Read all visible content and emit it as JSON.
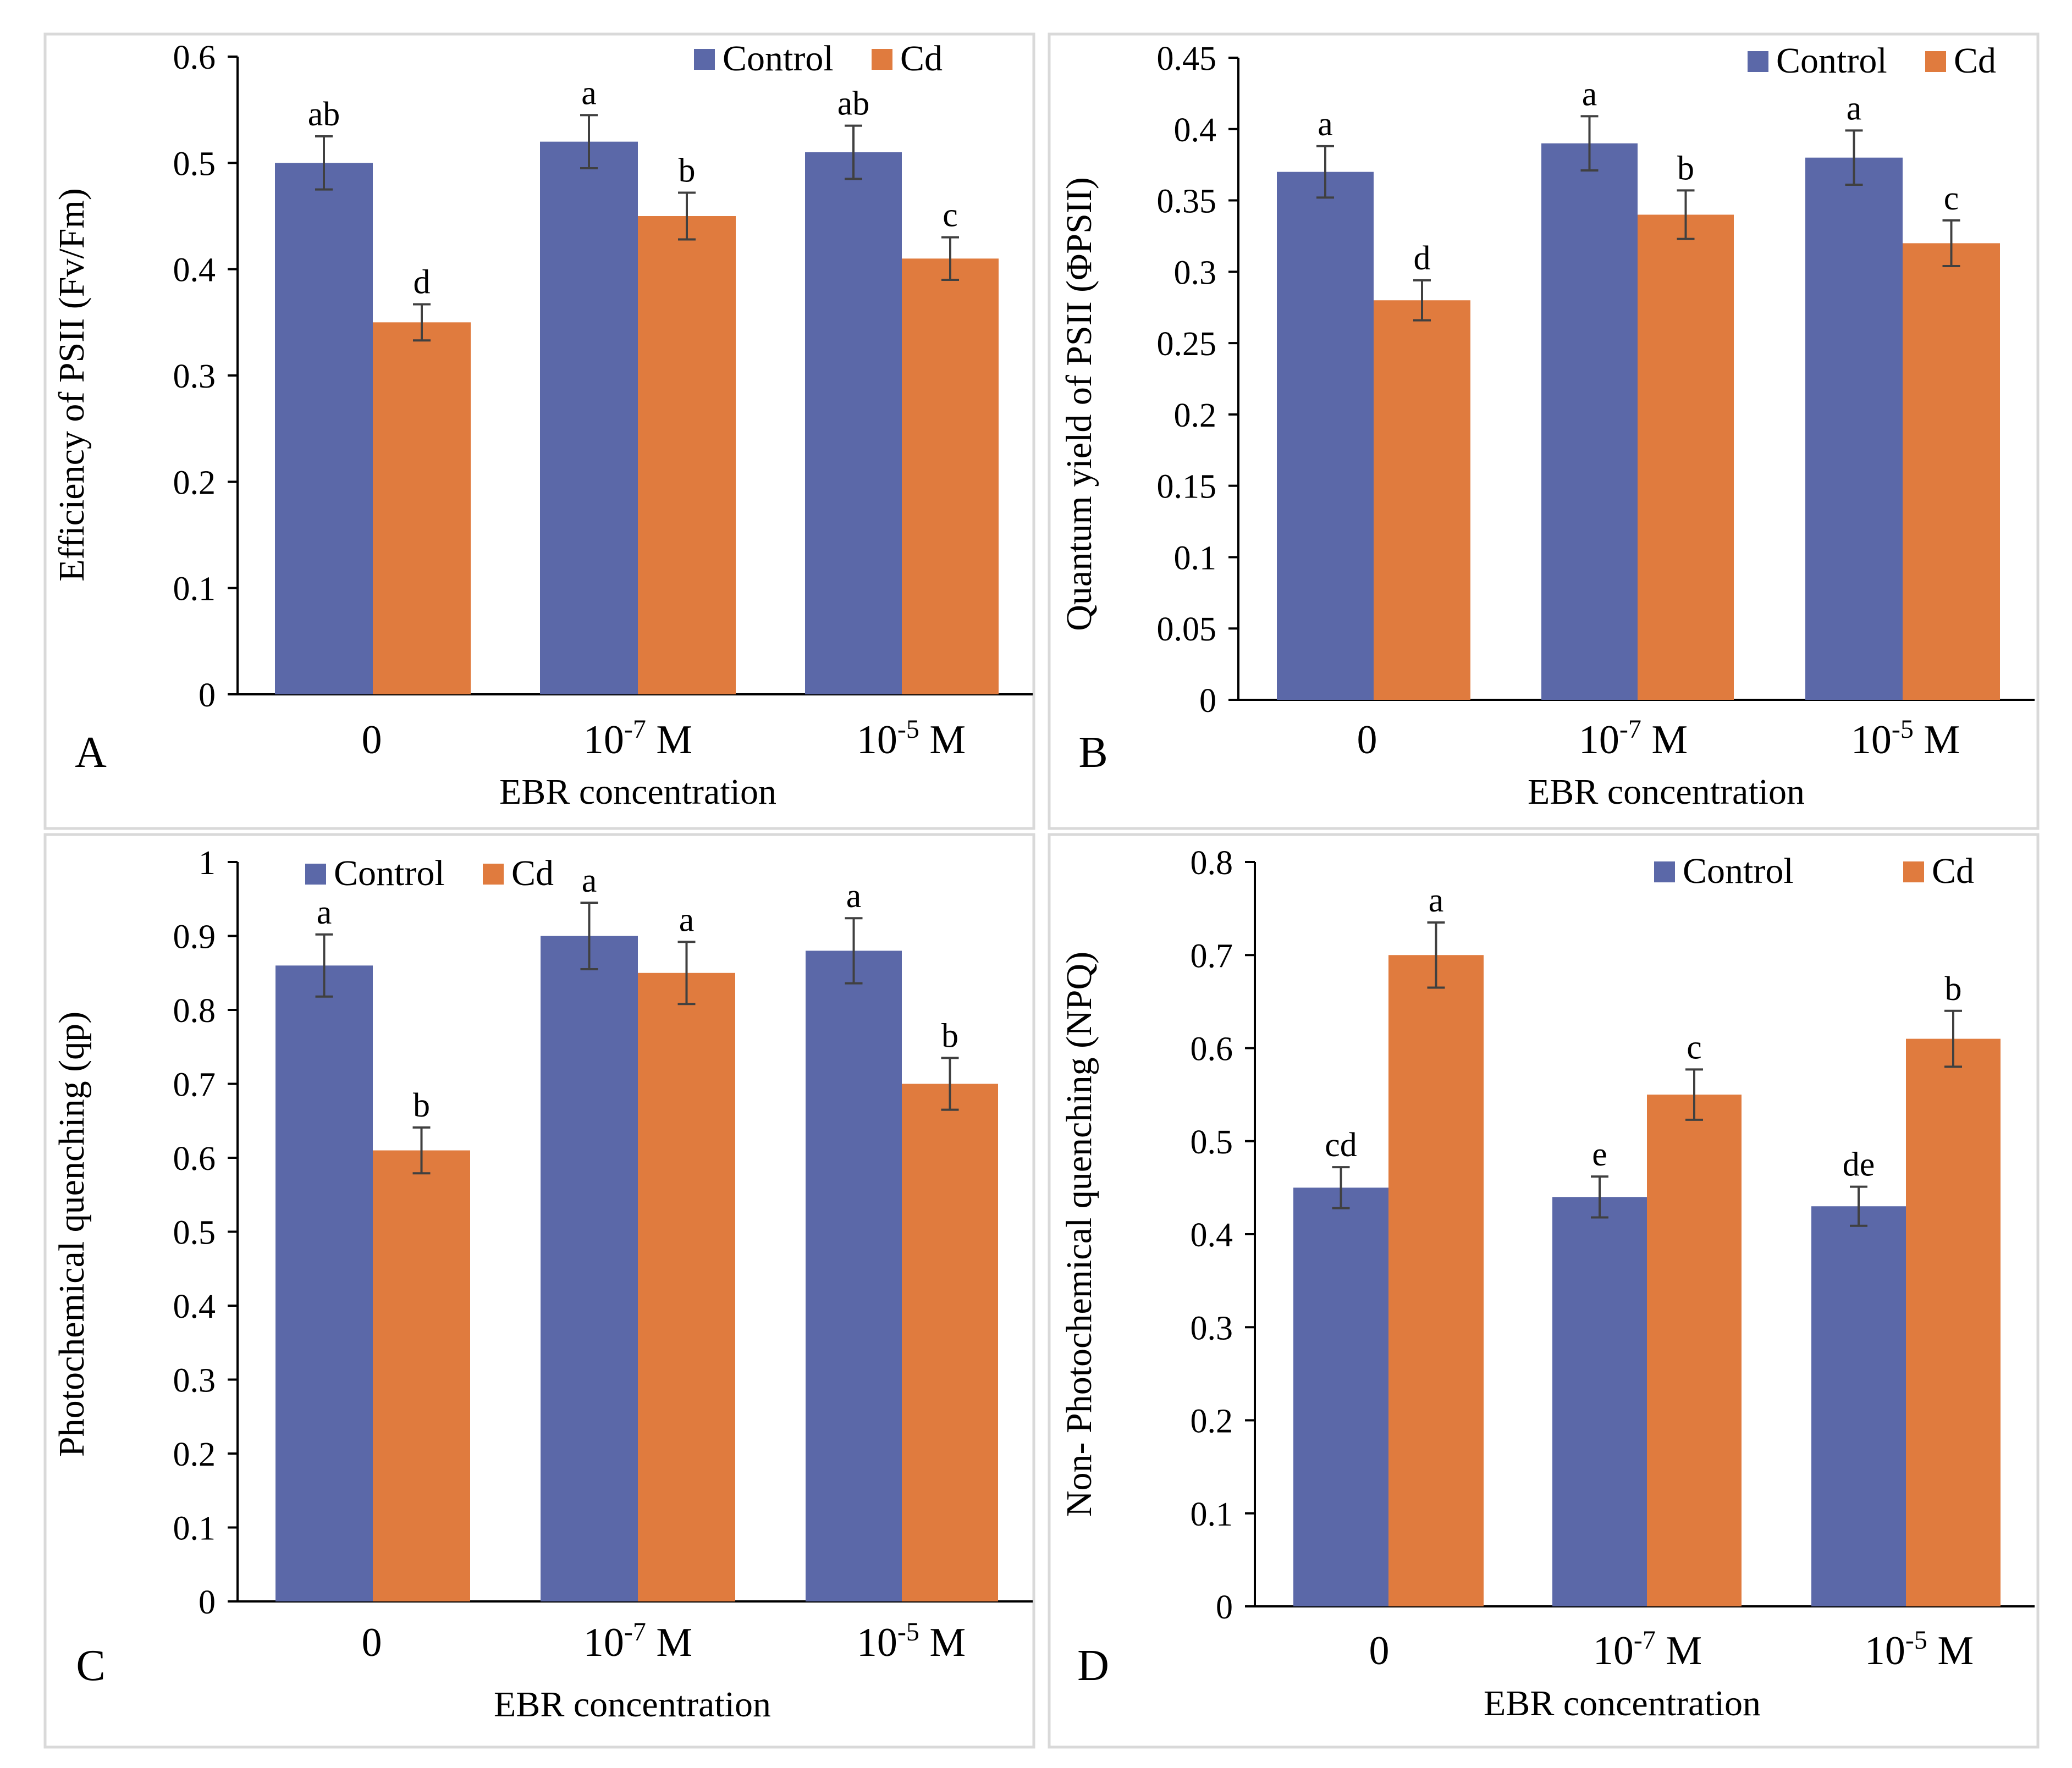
{
  "chart_data": [
    {
      "type": "bar",
      "panel_label": "A",
      "categories": [
        "0",
        "10-7 M",
        "10-5 M"
      ],
      "category_base": [
        "10",
        "10",
        ""
      ],
      "category_exp": [
        "-7",
        "-5",
        ""
      ],
      "category_unit": [
        " M",
        " M",
        ""
      ],
      "xlabel": "EBR concentration",
      "ylabel": "Efficiency of PSII (Fv/Fm)",
      "ylim": [
        0,
        0.6
      ],
      "yticks": [
        "0",
        "0.1",
        "0.2",
        "0.3",
        "0.4",
        "0.5",
        "0.6"
      ],
      "legend_position": "top-right",
      "series": [
        {
          "name": "Control",
          "color": "#5b68a8",
          "values": [
            0.5,
            0.52,
            0.51
          ],
          "errors": [
            0.025,
            0.025,
            0.025
          ],
          "letters": [
            "ab",
            "a",
            "ab"
          ]
        },
        {
          "name": "Cd",
          "color": "#e07b3e",
          "values": [
            0.35,
            0.45,
            0.41
          ],
          "errors": [
            0.017,
            0.022,
            0.02
          ],
          "letters": [
            "d",
            "b",
            "c"
          ]
        }
      ]
    },
    {
      "type": "bar",
      "panel_label": "B",
      "categories": [
        "0",
        "10-7 M",
        "10-5 M"
      ],
      "xlabel": "EBR concentration",
      "ylabel": "Quantum yield of PSII (ΦPSII)",
      "ylim": [
        0,
        0.45
      ],
      "yticks": [
        "0",
        "0.05",
        "0.1",
        "0.15",
        "0.2",
        "0.25",
        "0.3",
        "0.35",
        "0.4",
        "0.45"
      ],
      "legend_position": "top-right",
      "series": [
        {
          "name": "Control",
          "color": "#5b68a8",
          "values": [
            0.37,
            0.39,
            0.38
          ],
          "errors": [
            0.018,
            0.019,
            0.019
          ],
          "letters": [
            "a",
            "a",
            "a"
          ]
        },
        {
          "name": "Cd",
          "color": "#e07b3e",
          "values": [
            0.28,
            0.34,
            0.32
          ],
          "errors": [
            0.014,
            0.017,
            0.016
          ],
          "letters": [
            "d",
            "b",
            "c"
          ]
        }
      ]
    },
    {
      "type": "bar",
      "panel_label": "C",
      "categories": [
        "0",
        "10-7 M",
        "10-5 M"
      ],
      "xlabel": "EBR concentration",
      "ylabel": "Photochemical quenching (qp)",
      "ylim": [
        0,
        1
      ],
      "yticks": [
        "0",
        "0.1",
        "0.2",
        "0.3",
        "0.4",
        "0.5",
        "0.6",
        "0.7",
        "0.8",
        "0.9",
        "1"
      ],
      "legend_position": "top-left",
      "series": [
        {
          "name": "Control",
          "color": "#5b68a8",
          "values": [
            0.86,
            0.9,
            0.88
          ],
          "errors": [
            0.042,
            0.045,
            0.044
          ],
          "letters": [
            "a",
            "a",
            "a"
          ]
        },
        {
          "name": "Cd",
          "color": "#e07b3e",
          "values": [
            0.61,
            0.85,
            0.7
          ],
          "errors": [
            0.031,
            0.042,
            0.035
          ],
          "letters": [
            "b",
            "a",
            "b"
          ]
        }
      ]
    },
    {
      "type": "bar",
      "panel_label": "D",
      "categories": [
        "0",
        "10-7 M",
        "10-5 M"
      ],
      "xlabel": "EBR concentration",
      "ylabel": "Non- Photochemical quenching (NPQ)",
      "ylim": [
        0,
        0.8
      ],
      "yticks": [
        "0",
        "0.1",
        "0.2",
        "0.3",
        "0.4",
        "0.5",
        "0.6",
        "0.7",
        "0.8"
      ],
      "legend_position": "top-right",
      "series": [
        {
          "name": "Control",
          "color": "#5b68a8",
          "values": [
            0.45,
            0.44,
            0.43
          ],
          "errors": [
            0.022,
            0.022,
            0.021
          ],
          "letters": [
            "cd",
            "e",
            "de"
          ]
        },
        {
          "name": "Cd",
          "color": "#e07b3e",
          "values": [
            0.7,
            0.55,
            0.61
          ],
          "errors": [
            0.035,
            0.027,
            0.03
          ],
          "letters": [
            "a",
            "c",
            "b"
          ]
        }
      ]
    }
  ]
}
